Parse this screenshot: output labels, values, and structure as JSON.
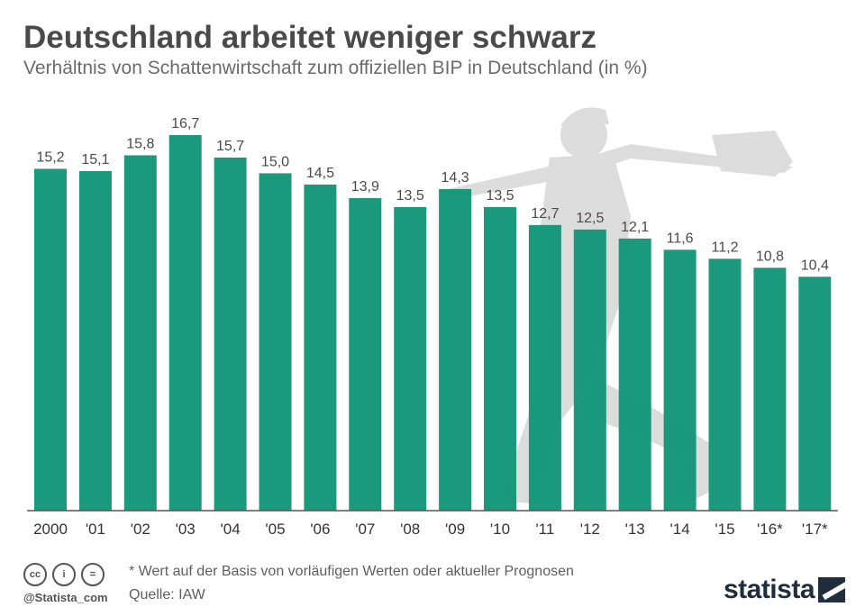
{
  "header": {
    "title": "Deutschland arbeitet weniger schwarz",
    "subtitle": "Verhältnis von Schattenwirtschaft zum offiziellen BIP in Deutschland (in %)"
  },
  "chart_data": {
    "type": "bar",
    "categories": [
      "2000",
      "'01",
      "'02",
      "'03",
      "'04",
      "'05",
      "'06",
      "'07",
      "'08",
      "'09",
      "'10",
      "'11",
      "'12",
      "'13",
      "'14",
      "'15",
      "'16*",
      "'17*"
    ],
    "values": [
      15.2,
      15.1,
      15.8,
      16.7,
      15.7,
      15.0,
      14.5,
      13.9,
      13.5,
      14.3,
      13.5,
      12.7,
      12.5,
      12.1,
      11.6,
      11.2,
      10.8,
      10.4
    ],
    "value_labels": [
      "15,2",
      "15,1",
      "15,8",
      "16,7",
      "15,7",
      "15,0",
      "14,5",
      "13,9",
      "13,5",
      "14,3",
      "13,5",
      "12,7",
      "12,5",
      "12,1",
      "11,6",
      "11,2",
      "10,8",
      "10,4"
    ],
    "ylim": [
      0,
      17.5
    ],
    "grid": false,
    "legend": "none",
    "bar_color": "#0f9475",
    "label_color": "#4a4a4a"
  },
  "footer": {
    "note": "* Wert auf der Basis von vorläufigen Werten oder aktueller Prognosen",
    "source": "Quelle: IAW",
    "handle": "@Statista_com",
    "logo": "statista",
    "icons": [
      "cc-icon",
      "person-icon",
      "equal-icon"
    ],
    "icon_glyphs": [
      "cc",
      "i",
      "="
    ]
  }
}
